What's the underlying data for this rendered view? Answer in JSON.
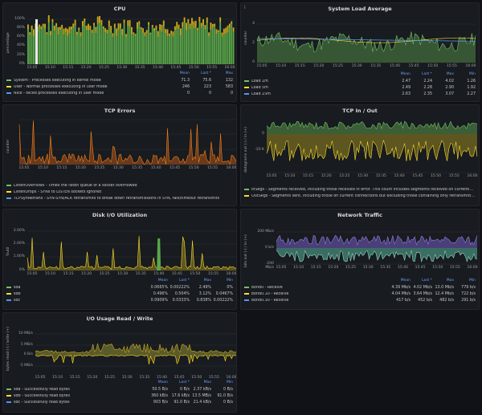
{
  "panels": {
    "cpu": {
      "title": "CPU",
      "ylabel": "percentage",
      "yticks": [
        "100%",
        "80%",
        "60%",
        "40%",
        "20%",
        "0%"
      ],
      "xticks": [
        "15:05",
        "15:10",
        "15:15",
        "15:20",
        "15:25",
        "15:30",
        "15:35",
        "15:40",
        "15:45",
        "15:50",
        "15:55",
        "16:00"
      ],
      "headers": [
        "Mean",
        "Last *",
        "Max"
      ],
      "rows": [
        {
          "name": "System - Processes executing in kernel mode",
          "color": "#73bf69",
          "vals": [
            "71.3",
            "75.6",
            "132"
          ]
        },
        {
          "name": "User - Normal processes executing in user mode",
          "color": "#fade2a",
          "vals": [
            "246",
            "223",
            "583"
          ]
        },
        {
          "name": "Nice - Niced processes executing in user mode",
          "color": "#5794f2",
          "vals": [
            "0",
            "0",
            "0"
          ]
        }
      ]
    },
    "load": {
      "title": "System Load Average",
      "ylabel": "counter",
      "info": "i",
      "yticks": [
        "4",
        "2",
        "0"
      ],
      "xticks": [
        "15:05",
        "15:10",
        "15:15",
        "15:20",
        "15:25",
        "15:30",
        "15:35",
        "15:40",
        "15:45",
        "15:50",
        "15:55",
        "16:00"
      ],
      "headers": [
        "Mean",
        "Last *",
        "Max",
        "Min"
      ],
      "rows": [
        {
          "name": "Load 1m",
          "color": "#73bf69",
          "vals": [
            "2.47",
            "2.24",
            "4.02",
            "1.26"
          ]
        },
        {
          "name": "Load 5m",
          "color": "#fade2a",
          "vals": [
            "2.49",
            "2.28",
            "2.90",
            "1.92"
          ]
        },
        {
          "name": "Load 15m",
          "color": "#5794f2",
          "vals": [
            "2.63",
            "2.35",
            "3.07",
            "2.27"
          ]
        }
      ]
    },
    "tcperr": {
      "title": "TCP Errors",
      "ylabel": "counter",
      "xticks": [
        "15:05",
        "15:10",
        "15:15",
        "15:20",
        "15:25",
        "15:30",
        "15:35",
        "15:40",
        "15:45",
        "15:50",
        "15:55",
        "16:00"
      ],
      "rows": [
        {
          "name": "ListenOverflows - Times the listen queue of a socket overflowed",
          "color": "#73bf69"
        },
        {
          "name": "ListenDrops - SYNs to LISTEN sockets ignored",
          "color": "#fade2a"
        },
        {
          "name": "TCPSynRetrans - SYN-SYN/ACK retransmits to break down retransmissions in SYN, fast/timeout retransmits",
          "color": "#5794f2"
        }
      ]
    },
    "tcpio": {
      "title": "TCP In / Out",
      "ylabel": "datagrams out (-) / in (+)",
      "yticks": [
        "0",
        "-20 K"
      ],
      "xticks": [
        "15:05",
        "15:10",
        "15:15",
        "15:20",
        "15:25",
        "15:30",
        "15:35",
        "15:40",
        "15:45",
        "15:50",
        "15:55",
        "16:00"
      ],
      "rows": [
        {
          "name": "InSegs - Segments received, including those received in error. This count includes segments received on currently established connections",
          "color": "#73bf69"
        },
        {
          "name": "OutSegs - Segments sent, including those on current connections but excluding those containing only retransmitted octets",
          "color": "#fade2a"
        }
      ]
    },
    "disk": {
      "title": "Disk I/O Utilization",
      "ylabel": "%util",
      "yticks": [
        "3.00%",
        "2.00%",
        "1.00%",
        "0%"
      ],
      "xticks": [
        "15:05",
        "15:10",
        "15:15",
        "15:20",
        "15:25",
        "15:30",
        "15:35",
        "15:40",
        "15:45",
        "15:50",
        "15:55",
        "16:00"
      ],
      "headers": [
        "Mean",
        "Last *",
        "Max",
        "Min"
      ],
      "rows": [
        {
          "name": "sda",
          "color": "#73bf69",
          "vals": [
            "0.0665%",
            "0.00222%",
            "2.49%",
            "0%"
          ]
        },
        {
          "name": "sdb",
          "color": "#fade2a",
          "vals": [
            "0.496%",
            "0.504%",
            "3.12%",
            "0.0467%"
          ]
        },
        {
          "name": "sdc",
          "color": "#5794f2",
          "vals": [
            "0.0909%",
            "0.0333%",
            "0.838%",
            "0.00222%"
          ]
        }
      ]
    },
    "net": {
      "title": "Network Traffic",
      "ylabel": "bits out (-) / in (+)",
      "yticks": [
        "200 Mb/s",
        "0 b/s",
        "-200 Mb/s"
      ],
      "xticks": [
        "15:05",
        "15:10",
        "15:15",
        "15:20",
        "15:25",
        "15:30",
        "15:35",
        "15:40",
        "15:45",
        "15:50",
        "15:55",
        "16:00"
      ],
      "headers": [
        "Mean",
        "Last *",
        "Max",
        "Min"
      ],
      "rows": [
        {
          "name": "bond0 - Receive",
          "color": "#73bf69",
          "vals": [
            "4.39 Mb/s",
            "4.02 Mb/s",
            "13.0 Mb/s",
            "779 b/s"
          ]
        },
        {
          "name": "bond0.10 - Receive",
          "color": "#fade2a",
          "vals": [
            "4.04 Mb/s",
            "3.64 Mb/s",
            "12.4 Mb/s",
            "722 b/s"
          ]
        },
        {
          "name": "bond0.30 - Receive",
          "color": "#5794f2",
          "vals": [
            "417 b/s",
            "452 b/s",
            "482 b/s",
            "291 b/s"
          ]
        }
      ]
    },
    "rw": {
      "title": "I/O Usage Read / Write",
      "ylabel": "bytes read (-) / write (+)",
      "yticks": [
        "10 MB/s",
        "5 MB/s",
        "0 B/s",
        "-5 MB/s"
      ],
      "xticks": [
        "15:05",
        "15:10",
        "15:15",
        "15:20",
        "15:25",
        "15:30",
        "15:35",
        "15:40",
        "15:45",
        "15:50",
        "15:55",
        "16:00"
      ],
      "headers": [
        "Mean",
        "Last *",
        "Max",
        "Min"
      ],
      "rows": [
        {
          "name": "sda - Successfully read bytes",
          "color": "#73bf69",
          "vals": [
            "50.5 B/s",
            "0 B/s",
            "2.37 kB/s",
            "0 B/s"
          ]
        },
        {
          "name": "sdb - Successfully read bytes",
          "color": "#fade2a",
          "vals": [
            "360 kB/s",
            "17.6 kB/s",
            "13.5 MB/s",
            "91.0 B/s"
          ]
        },
        {
          "name": "sdc - Successfully read bytes",
          "color": "#5794f2",
          "vals": [
            "903 B/s",
            "91.0 B/s",
            "21.4 kB/s",
            "0 B/s"
          ]
        }
      ]
    }
  }
}
